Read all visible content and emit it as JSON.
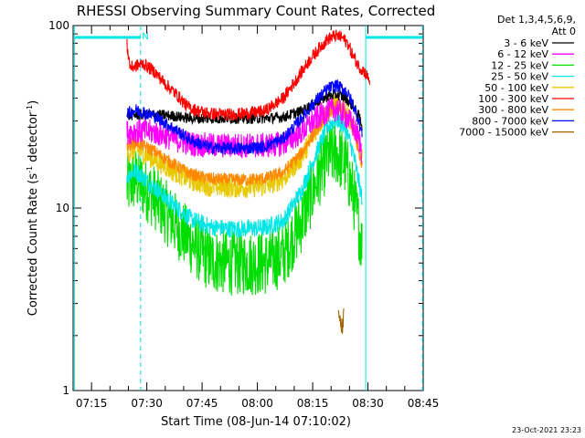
{
  "chart_data": {
    "type": "line",
    "title": "RHESSI Observing Summary Count Rates, Corrected",
    "xlabel": "Start Time (08-Jun-14 07:10:02)",
    "ylabel_main": "Corrected Count Rate (s",
    "ylabel_sup1": "-1",
    "ylabel_mid": " detector",
    "ylabel_sup2": "-1",
    "ylabel_end": ")",
    "yscale": "log",
    "ylim": [
      1,
      100
    ],
    "xlim_min": [
      5,
      100
    ],
    "y_ticks": [
      {
        "value": 100,
        "label": "100"
      },
      {
        "value": 10,
        "label": "10"
      },
      {
        "value": 1,
        "label": "1"
      }
    ],
    "x_ticks": [
      {
        "value": 10,
        "label": "07:15"
      },
      {
        "value": 25,
        "label": "07:30"
      },
      {
        "value": 40,
        "label": "07:45"
      },
      {
        "value": 55,
        "label": "08:00"
      },
      {
        "value": 70,
        "label": "08:15"
      },
      {
        "value": 85,
        "label": "08:30"
      },
      {
        "value": 100,
        "label": "08:45"
      }
    ],
    "legend_header": [
      "Det 1,3,4,5,6,9,",
      "Att 0"
    ],
    "legend_position": "right",
    "timestamp": "23-Oct-2021 23:23",
    "night_flag": "N",
    "series": [
      {
        "name": "3 - 6 keV",
        "color": "#000000",
        "noise": 0.03,
        "points": [
          [
            19.6,
            32
          ],
          [
            22,
            32.5
          ],
          [
            27,
            32.5
          ],
          [
            32,
            32
          ],
          [
            37,
            31
          ],
          [
            42,
            31
          ],
          [
            47,
            31
          ],
          [
            52,
            31
          ],
          [
            57,
            31
          ],
          [
            62,
            31.5
          ],
          [
            67,
            34
          ],
          [
            71,
            38
          ],
          [
            74,
            41
          ],
          [
            76.5,
            42
          ],
          [
            79,
            40
          ],
          [
            81,
            36
          ],
          [
            82.5,
            32
          ],
          [
            83.5,
            28
          ]
        ]
      },
      {
        "name": "6 - 12 keV",
        "color": "#ff00ff",
        "noise": 0.07,
        "points": [
          [
            19.6,
            26
          ],
          [
            22,
            26.5
          ],
          [
            27,
            26
          ],
          [
            32,
            24
          ],
          [
            37,
            22.5
          ],
          [
            42,
            22
          ],
          [
            47,
            22
          ],
          [
            52,
            22
          ],
          [
            57,
            22
          ],
          [
            62,
            22.5
          ],
          [
            67,
            26
          ],
          [
            71,
            31
          ],
          [
            74,
            34
          ],
          [
            76.5,
            35
          ],
          [
            79,
            32
          ],
          [
            81,
            28
          ],
          [
            82.5,
            24
          ],
          [
            83.5,
            20
          ]
        ]
      },
      {
        "name": "12 - 25 keV",
        "color": "#00dd00",
        "noise": 0.18,
        "points": [
          [
            19.6,
            13
          ],
          [
            22,
            14.5
          ],
          [
            27,
            11.5
          ],
          [
            32,
            8.5
          ],
          [
            37,
            6.5
          ],
          [
            42,
            5.2
          ],
          [
            47,
            5.0
          ],
          [
            52,
            5.0
          ],
          [
            57,
            5.0
          ],
          [
            62,
            5.5
          ],
          [
            67,
            8.5
          ],
          [
            71,
            14
          ],
          [
            74,
            19
          ],
          [
            76.5,
            20
          ],
          [
            79,
            17
          ],
          [
            81,
            12
          ],
          [
            82.5,
            8
          ],
          [
            83.5,
            6
          ]
        ]
      },
      {
        "name": "25 - 50 keV",
        "color": "#00e5e5",
        "noise": 0.05,
        "points": [
          [
            19.6,
            15
          ],
          [
            22,
            16
          ],
          [
            27,
            13
          ],
          [
            32,
            10.5
          ],
          [
            37,
            8.7
          ],
          [
            42,
            7.9
          ],
          [
            47,
            7.7
          ],
          [
            52,
            7.7
          ],
          [
            57,
            7.8
          ],
          [
            62,
            8.5
          ],
          [
            67,
            12.5
          ],
          [
            71,
            20
          ],
          [
            74,
            28
          ],
          [
            76.5,
            31
          ],
          [
            79,
            27
          ],
          [
            81,
            20
          ],
          [
            82.5,
            14
          ],
          [
            83.5,
            11
          ]
        ]
      },
      {
        "name": "50 - 100 keV",
        "color": "#e8c800",
        "noise": 0.06,
        "points": [
          [
            19.6,
            20
          ],
          [
            22,
            21
          ],
          [
            27,
            18.5
          ],
          [
            32,
            16
          ],
          [
            37,
            14.2
          ],
          [
            42,
            13.2
          ],
          [
            47,
            13
          ],
          [
            52,
            13
          ],
          [
            57,
            13.2
          ],
          [
            62,
            14.5
          ],
          [
            67,
            19
          ],
          [
            71,
            27
          ],
          [
            74,
            34
          ],
          [
            76.5,
            38
          ],
          [
            79,
            34
          ],
          [
            81,
            28
          ],
          [
            82.5,
            22
          ],
          [
            83.5,
            18
          ]
        ]
      },
      {
        "name": "100 - 300 keV",
        "color": "#ff0000",
        "noise": 0.035,
        "points": [
          [
            19.6,
            78
          ],
          [
            20.5,
            59
          ],
          [
            22,
            60
          ],
          [
            24,
            62
          ],
          [
            27,
            56
          ],
          [
            30,
            48
          ],
          [
            33,
            42
          ],
          [
            36,
            36
          ],
          [
            39,
            34
          ],
          [
            42,
            33
          ],
          [
            47,
            32.5
          ],
          [
            52,
            33
          ],
          [
            57,
            34
          ],
          [
            62,
            40
          ],
          [
            66,
            52
          ],
          [
            69,
            64
          ],
          [
            72,
            76
          ],
          [
            74,
            84
          ],
          [
            76,
            88
          ],
          [
            78,
            86
          ],
          [
            79.5,
            80
          ],
          [
            81,
            68
          ],
          [
            82.5,
            60
          ],
          [
            84,
            56
          ],
          [
            85.5,
            50
          ]
        ]
      },
      {
        "name": "300 - 800 keV",
        "color": "#ff8800",
        "noise": 0.035,
        "points": [
          [
            19.6,
            22
          ],
          [
            22,
            23
          ],
          [
            27,
            20.5
          ],
          [
            32,
            17.5
          ],
          [
            37,
            15.3
          ],
          [
            42,
            14.5
          ],
          [
            47,
            14.3
          ],
          [
            52,
            14.3
          ],
          [
            57,
            14.5
          ],
          [
            62,
            15.7
          ],
          [
            67,
            20
          ],
          [
            71,
            27
          ],
          [
            74,
            33
          ],
          [
            76.5,
            36
          ],
          [
            79,
            33
          ],
          [
            81,
            27
          ],
          [
            82.5,
            21
          ],
          [
            83.5,
            17
          ]
        ]
      },
      {
        "name": "800 - 7000 keV",
        "color": "#0000ff",
        "noise": 0.035,
        "points": [
          [
            19.6,
            33
          ],
          [
            22,
            34.5
          ],
          [
            27,
            32
          ],
          [
            32,
            27.5
          ],
          [
            37,
            23.5
          ],
          [
            42,
            21.5
          ],
          [
            47,
            21.2
          ],
          [
            52,
            21.3
          ],
          [
            57,
            21.7
          ],
          [
            62,
            24
          ],
          [
            67,
            31
          ],
          [
            71,
            39
          ],
          [
            74,
            45
          ],
          [
            76.5,
            47
          ],
          [
            79,
            44
          ],
          [
            81,
            37
          ],
          [
            82.5,
            30
          ],
          [
            83.5,
            25
          ]
        ]
      },
      {
        "name": "7000 - 15000 keV",
        "color": "#a06400",
        "noise": 0.05,
        "points": [
          [
            77,
            2.5
          ],
          [
            78,
            2.2
          ],
          [
            78.5,
            2.6
          ]
        ]
      }
    ],
    "vertical_lines": [
      {
        "x": 5.4,
        "style": "solid"
      },
      {
        "x": 23.3,
        "style": "dashed"
      },
      {
        "x": 84.4,
        "style": "solid"
      },
      {
        "x": 99.8,
        "style": "dashed"
      }
    ],
    "night_bars": [
      [
        5.4,
        23.3
      ],
      [
        84.4,
        99.8
      ]
    ]
  }
}
